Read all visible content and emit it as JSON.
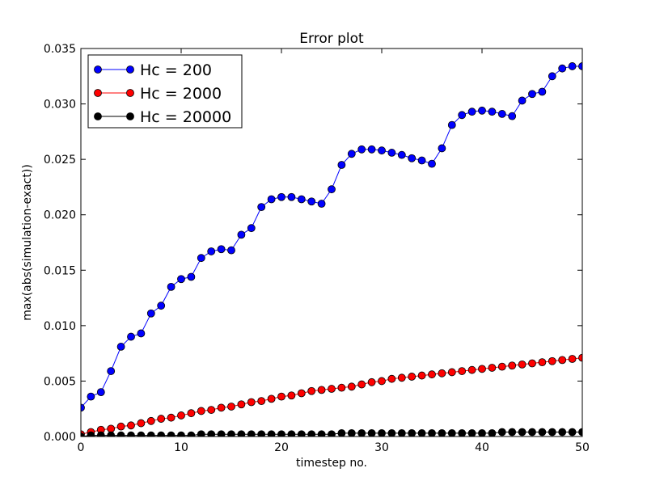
{
  "chart_data": {
    "type": "line",
    "title": "Error plot",
    "xlabel": "timestep no.",
    "ylabel": "max(abs(simulation-exact))",
    "xlim": [
      0,
      50
    ],
    "ylim": [
      0,
      0.035
    ],
    "x_ticks": [
      0,
      10,
      20,
      30,
      40,
      50
    ],
    "y_ticks": [
      0.0,
      0.005,
      0.01,
      0.015,
      0.02,
      0.025,
      0.03,
      0.035
    ],
    "x_tick_labels": [
      "0",
      "10",
      "20",
      "30",
      "40",
      "50"
    ],
    "y_tick_labels": [
      "0.000",
      "0.005",
      "0.010",
      "0.015",
      "0.020",
      "0.025",
      "0.030",
      "0.035"
    ],
    "grid": false,
    "legend_position": "top-left",
    "x": [
      0,
      1,
      2,
      3,
      4,
      5,
      6,
      7,
      8,
      9,
      10,
      11,
      12,
      13,
      14,
      15,
      16,
      17,
      18,
      19,
      20,
      21,
      22,
      23,
      24,
      25,
      26,
      27,
      28,
      29,
      30,
      31,
      32,
      33,
      34,
      35,
      36,
      37,
      38,
      39,
      40,
      41,
      42,
      43,
      44,
      45,
      46,
      47,
      48,
      49,
      50
    ],
    "series": [
      {
        "name": "Hc = 200",
        "color": "#0000ff",
        "values": [
          0.0026,
          0.0036,
          0.004,
          0.0059,
          0.0081,
          0.009,
          0.0093,
          0.0111,
          0.0118,
          0.0135,
          0.0142,
          0.0144,
          0.0161,
          0.0167,
          0.0169,
          0.0168,
          0.0182,
          0.0188,
          0.0207,
          0.0214,
          0.0216,
          0.0216,
          0.0214,
          0.0212,
          0.021,
          0.0223,
          0.0245,
          0.0255,
          0.0259,
          0.0259,
          0.0258,
          0.0256,
          0.0254,
          0.0251,
          0.0249,
          0.0246,
          0.026,
          0.0281,
          0.029,
          0.0293,
          0.0294,
          0.0293,
          0.0291,
          0.0289,
          0.0303,
          0.0309,
          0.0311,
          0.0325,
          0.0332,
          0.0334,
          0.0334
        ]
      },
      {
        "name": "Hc = 2000",
        "color": "#ff0000",
        "values": [
          0.0002,
          0.0004,
          0.0006,
          0.0007,
          0.0009,
          0.001,
          0.0012,
          0.0014,
          0.0016,
          0.0017,
          0.0019,
          0.0021,
          0.0023,
          0.0024,
          0.0026,
          0.0027,
          0.0029,
          0.0031,
          0.0032,
          0.0034,
          0.0036,
          0.0037,
          0.0039,
          0.0041,
          0.0042,
          0.0043,
          0.0044,
          0.0045,
          0.0047,
          0.0049,
          0.005,
          0.0052,
          0.0053,
          0.0054,
          0.0055,
          0.0056,
          0.0057,
          0.0058,
          0.0059,
          0.006,
          0.0061,
          0.0062,
          0.0063,
          0.0064,
          0.0065,
          0.0066,
          0.0067,
          0.0068,
          0.0069,
          0.007,
          0.0071
        ]
      },
      {
        "name": "Hc = 20000",
        "color": "#000000",
        "values": [
          0.0,
          0.0001,
          0.0001,
          0.0001,
          0.0001,
          0.0001,
          0.0001,
          0.0001,
          0.0001,
          0.0001,
          0.0001,
          0.0001,
          0.0002,
          0.0002,
          0.0002,
          0.0002,
          0.0002,
          0.0002,
          0.0002,
          0.0002,
          0.0002,
          0.0002,
          0.0002,
          0.0002,
          0.0002,
          0.0002,
          0.0003,
          0.0003,
          0.0003,
          0.0003,
          0.0003,
          0.0003,
          0.0003,
          0.0003,
          0.0003,
          0.0003,
          0.0003,
          0.0003,
          0.0003,
          0.0003,
          0.0003,
          0.0003,
          0.0004,
          0.0004,
          0.0004,
          0.0004,
          0.0004,
          0.0004,
          0.0004,
          0.0004,
          0.0004
        ]
      }
    ]
  }
}
